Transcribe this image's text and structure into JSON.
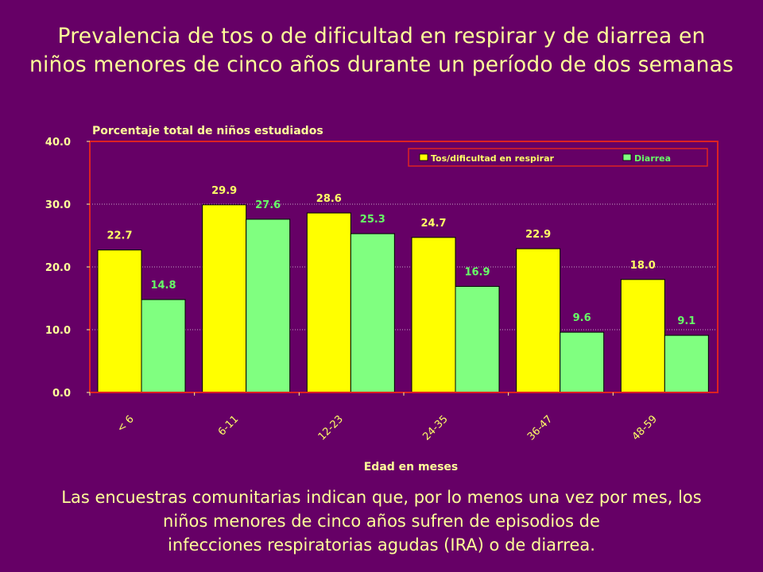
{
  "slide": {
    "title_lines": [
      "Prevalencia de tos o de dificultad en respirar y de diarrea en",
      "niños menores de cinco años durante un período de dos semanas"
    ],
    "footer_lines": [
      "Las encuestras comunitarias indican que, por lo menos una vez por mes, los",
      "niños menores de cinco años sufren de episodios de",
      "infecciones respiratorias agudas (IRA) o de diarrea."
    ]
  },
  "colors": {
    "background": "#660066",
    "text": "#ffff99",
    "frame": "#dd2222",
    "series": [
      "#ffff00",
      "#80ff80"
    ],
    "series_label": [
      "#ffff66",
      "#66ff66"
    ]
  },
  "chart_data": {
    "type": "bar",
    "ylabel": "Porcentaje total de niños estudiados",
    "xlabel": "Edad en meses",
    "categories": [
      "< 6",
      "6-11",
      "12-23",
      "24-35",
      "36-47",
      "48-59"
    ],
    "series": [
      {
        "name": "Tos/dificultad en respirar",
        "values": [
          22.7,
          29.9,
          28.6,
          24.7,
          22.9,
          18.0
        ]
      },
      {
        "name": "Diarrea",
        "values": [
          14.8,
          27.6,
          25.3,
          16.9,
          9.6,
          9.1
        ]
      }
    ],
    "ylim": [
      0,
      40
    ],
    "yticks": [
      "0.0",
      "10.0",
      "20.0",
      "30.0",
      "40.0"
    ],
    "value_labels": [
      [
        "22.7",
        "29.9",
        "28.6",
        "24.7",
        "22.9",
        "18.0"
      ],
      [
        "14.8",
        "27.6",
        "25.3",
        "16.9",
        "9.6",
        "9.1"
      ]
    ],
    "grid": true,
    "legend_position": "top-right"
  }
}
